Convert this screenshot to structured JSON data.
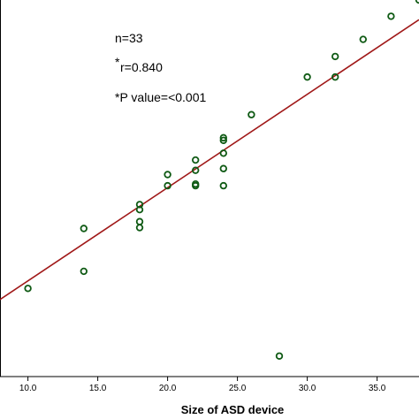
{
  "chart_data": {
    "type": "scatter",
    "title": "",
    "xlabel": "Size of ASD device",
    "ylabel": "",
    "xlim": [
      8.0,
      38.0
    ],
    "ylim": [
      0,
      44
    ],
    "x_ticks": [
      "10.0",
      "15.0",
      "20.0",
      "25.0",
      "30.0",
      "35.0"
    ],
    "grid": false,
    "annotations": {
      "n": "n=33",
      "r_star": "*",
      "r": "r=0.840",
      "p": "*P value=<0.001"
    },
    "colors": {
      "point_stroke": "#0f5a14",
      "fit_line": "#a01818",
      "axis": "#000000"
    },
    "fit_line": {
      "x": [
        8.0,
        38.0
      ],
      "y": [
        9.0,
        41.7
      ]
    },
    "points": [
      {
        "x": 10,
        "y": 10.3
      },
      {
        "x": 14,
        "y": 17.3
      },
      {
        "x": 14,
        "y": 12.3
      },
      {
        "x": 18,
        "y": 20.1
      },
      {
        "x": 18,
        "y": 19.5
      },
      {
        "x": 18,
        "y": 18.1
      },
      {
        "x": 18,
        "y": 17.4
      },
      {
        "x": 20,
        "y": 23.6
      },
      {
        "x": 20,
        "y": 22.3
      },
      {
        "x": 22,
        "y": 25.3
      },
      {
        "x": 22,
        "y": 24.1
      },
      {
        "x": 22,
        "y": 22.5
      },
      {
        "x": 22,
        "y": 22.3
      },
      {
        "x": 24,
        "y": 27.9
      },
      {
        "x": 24,
        "y": 27.6
      },
      {
        "x": 24,
        "y": 26.1
      },
      {
        "x": 24,
        "y": 24.3
      },
      {
        "x": 24,
        "y": 22.3
      },
      {
        "x": 26,
        "y": 30.6
      },
      {
        "x": 28,
        "y": 2.4
      },
      {
        "x": 30,
        "y": 35.0
      },
      {
        "x": 32,
        "y": 37.4
      },
      {
        "x": 32,
        "y": 35.0
      },
      {
        "x": 34,
        "y": 39.4
      },
      {
        "x": 36,
        "y": 42.1
      },
      {
        "x": 38,
        "y": 44.0
      }
    ]
  }
}
